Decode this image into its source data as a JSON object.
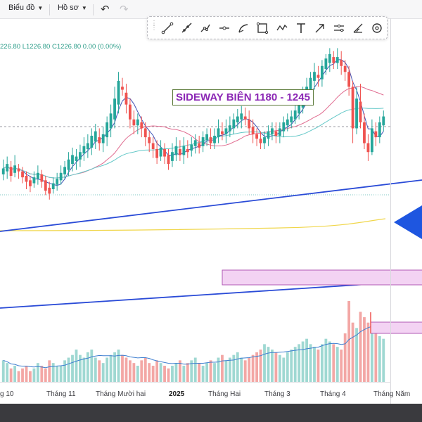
{
  "toolbar": {
    "chart_menu_label": "Biểu đồ",
    "profile_menu_label": "Hồ sơ"
  },
  "drawing_tools": [
    "trend-line-icon",
    "ray-icon",
    "path-icon",
    "horizontal-line-icon",
    "arc-icon",
    "rectangle-icon",
    "polyline-icon",
    "text-icon",
    "arrow-icon",
    "channel-icon",
    "curve-icon",
    "circle-icon"
  ],
  "legend": {
    "text": "226.80 L1226.80 C1226.80 0.00 (0.00%)"
  },
  "annotation": {
    "title": "SIDEWAY BIÊN 1180 - 1245"
  },
  "x_axis": {
    "labels": [
      "g 10",
      "Tháng 11",
      "Tháng Mười hai",
      "2025",
      "Tháng Hai",
      "Tháng 3",
      "Tháng 4",
      "Tháng Năm"
    ]
  },
  "colors": {
    "up": "#26a69a",
    "down": "#ef5350",
    "trendline": "#2a4bd7",
    "zone_fill": "#f3d3f3",
    "zone_border": "#b05ab5",
    "ma_short": "#3f51b5",
    "ma_mid": "#e06c90",
    "ma_long": "#64c8c8",
    "ma_yellow": "#f0d64a",
    "arrow": "#1e56e0",
    "title_text": "#8b27b5"
  },
  "chart_data": {
    "type": "candlestick",
    "price_bars": [
      [
        231,
        235,
        227,
        241
      ],
      [
        233,
        238,
        228,
        243
      ],
      [
        236,
        230,
        226,
        240
      ],
      [
        232,
        237,
        229,
        244
      ],
      [
        235,
        233,
        228,
        238
      ],
      [
        233,
        229,
        225,
        236
      ],
      [
        230,
        226,
        221,
        233
      ],
      [
        227,
        223,
        219,
        230
      ],
      [
        225,
        229,
        222,
        233
      ],
      [
        228,
        232,
        224,
        237
      ],
      [
        231,
        226,
        222,
        234
      ],
      [
        227,
        220,
        217,
        230
      ],
      [
        222,
        218,
        214,
        226
      ],
      [
        221,
        225,
        218,
        229
      ],
      [
        224,
        228,
        220,
        232
      ],
      [
        227,
        232,
        224,
        237
      ],
      [
        231,
        236,
        228,
        240
      ],
      [
        234,
        241,
        230,
        246
      ],
      [
        238,
        244,
        233,
        249
      ],
      [
        240,
        243,
        234,
        248
      ],
      [
        241,
        246,
        236,
        251
      ],
      [
        245,
        250,
        240,
        256
      ],
      [
        248,
        252,
        242,
        258
      ],
      [
        249,
        257,
        244,
        262
      ],
      [
        253,
        260,
        248,
        265
      ],
      [
        256,
        252,
        247,
        262
      ],
      [
        252,
        258,
        246,
        263
      ],
      [
        256,
        266,
        250,
        270
      ],
      [
        262,
        272,
        256,
        278
      ],
      [
        268,
        282,
        262,
        290
      ],
      [
        278,
        294,
        272,
        300
      ],
      [
        290,
        288,
        284,
        296
      ],
      [
        286,
        278,
        272,
        292
      ],
      [
        278,
        268,
        262,
        282
      ],
      [
        268,
        264,
        258,
        274
      ],
      [
        264,
        268,
        258,
        272
      ],
      [
        266,
        262,
        256,
        270
      ],
      [
        262,
        256,
        250,
        266
      ],
      [
        256,
        252,
        246,
        260
      ],
      [
        252,
        248,
        242,
        256
      ],
      [
        248,
        242,
        238,
        254
      ],
      [
        243,
        249,
        240,
        254
      ],
      [
        248,
        243,
        238,
        252
      ],
      [
        244,
        238,
        234,
        248
      ],
      [
        240,
        246,
        236,
        252
      ],
      [
        244,
        250,
        240,
        256
      ],
      [
        248,
        244,
        240,
        254
      ],
      [
        244,
        250,
        238,
        256
      ],
      [
        248,
        246,
        242,
        254
      ],
      [
        247,
        251,
        243,
        256
      ],
      [
        250,
        254,
        245,
        258
      ],
      [
        252,
        249,
        245,
        257
      ],
      [
        250,
        256,
        246,
        260
      ],
      [
        254,
        258,
        250,
        262
      ],
      [
        256,
        252,
        248,
        262
      ],
      [
        252,
        257,
        248,
        262
      ],
      [
        256,
        262,
        252,
        268
      ],
      [
        260,
        258,
        254,
        266
      ],
      [
        258,
        262,
        252,
        268
      ],
      [
        260,
        264,
        256,
        270
      ],
      [
        262,
        268,
        258,
        272
      ],
      [
        266,
        270,
        262,
        275
      ],
      [
        268,
        272,
        262,
        277
      ],
      [
        270,
        268,
        264,
        276
      ],
      [
        268,
        262,
        258,
        274
      ],
      [
        263,
        258,
        252,
        268
      ],
      [
        258,
        255,
        250,
        262
      ],
      [
        255,
        252,
        248,
        260
      ],
      [
        252,
        256,
        248,
        260
      ],
      [
        255,
        260,
        250,
        264
      ],
      [
        258,
        262,
        254,
        266
      ],
      [
        260,
        257,
        252,
        266
      ],
      [
        257,
        262,
        252,
        266
      ],
      [
        260,
        266,
        256,
        270
      ],
      [
        264,
        268,
        260,
        272
      ],
      [
        266,
        270,
        262,
        274
      ],
      [
        268,
        274,
        265,
        280
      ],
      [
        272,
        278,
        268,
        282
      ],
      [
        276,
        284,
        272,
        290
      ],
      [
        282,
        290,
        278,
        296
      ],
      [
        288,
        296,
        283,
        300
      ],
      [
        294,
        300,
        288,
        306
      ],
      [
        298,
        296,
        290,
        304
      ],
      [
        295,
        304,
        290,
        308
      ],
      [
        302,
        309,
        298,
        312
      ],
      [
        306,
        312,
        300,
        316
      ],
      [
        310,
        306,
        302,
        314
      ],
      [
        306,
        310,
        302,
        316
      ],
      [
        308,
        304,
        298,
        314
      ],
      [
        304,
        300,
        294,
        308
      ],
      [
        300,
        290,
        284,
        304
      ],
      [
        290,
        262,
        252,
        294
      ],
      [
        262,
        282,
        258,
        290
      ],
      [
        280,
        266,
        262,
        292
      ],
      [
        266,
        252,
        248,
        272
      ],
      [
        252,
        246,
        240,
        258
      ],
      [
        246,
        262,
        244,
        268
      ],
      [
        260,
        256,
        250,
        266
      ],
      [
        256,
        266,
        252,
        270
      ],
      [
        264,
        270,
        260,
        274
      ]
    ],
    "volume": [
      8,
      7,
      5,
      6,
      4,
      5,
      6,
      4,
      5,
      7,
      6,
      5,
      8,
      7,
      6,
      6,
      8,
      9,
      10,
      12,
      10,
      9,
      11,
      12,
      9,
      8,
      7,
      9,
      10,
      11,
      12,
      10,
      9,
      8,
      7,
      6,
      8,
      9,
      7,
      6,
      8,
      7,
      6,
      5,
      6,
      7,
      8,
      6,
      7,
      8,
      9,
      7,
      6,
      7,
      8,
      7,
      9,
      10,
      8,
      9,
      10,
      11,
      9,
      8,
      9,
      10,
      11,
      12,
      14,
      13,
      12,
      11,
      10,
      9,
      11,
      12,
      13,
      14,
      15,
      16,
      14,
      13,
      12,
      14,
      16,
      15,
      14,
      13,
      12,
      18,
      30,
      22,
      20,
      26,
      24,
      22,
      19,
      18,
      17,
      16
    ],
    "ylim": [
      140,
      320
    ],
    "horizontal_zone": [
      1165,
      1180
    ],
    "notes": "values are approximate, read from the screenshot; price axis not labeled in crop"
  }
}
